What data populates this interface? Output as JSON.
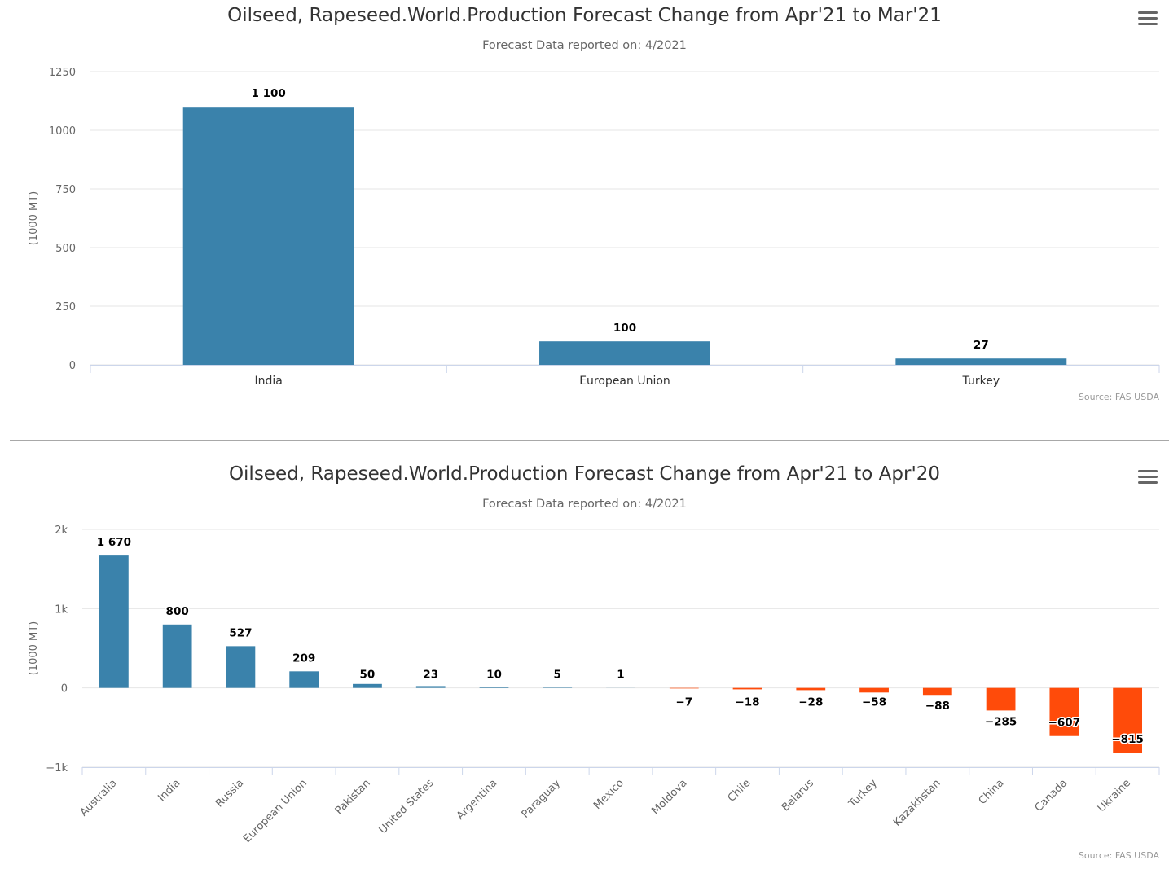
{
  "charts": [
    {
      "title": "Oilseed, Rapeseed.World.Production Forecast Change from Apr'21 to Mar'21",
      "subtitle": "Forecast Data reported on: 4/2021",
      "credits": "Source: FAS USDA",
      "menu_icon": "hamburger-menu-icon"
    },
    {
      "title": "Oilseed, Rapeseed.World.Production Forecast Change from Apr'21 to Apr'20",
      "subtitle": "Forecast Data reported on: 4/2021",
      "credits": "Source: FAS USDA",
      "menu_icon": "hamburger-menu-icon"
    }
  ],
  "chart_data": [
    {
      "type": "bar",
      "title": "Oilseed, Rapeseed.World.Production Forecast Change from Apr'21 to Mar'21",
      "subtitle": "Forecast Data reported on: 4/2021",
      "ylabel": "(1000 MT)",
      "xlabel": "",
      "categories": [
        "India",
        "European Union",
        "Turkey"
      ],
      "values": [
        1100,
        100,
        27
      ],
      "data_labels": [
        "1 100",
        "100",
        "27"
      ],
      "ylim": [
        0,
        1250
      ],
      "yticks": [
        0,
        250,
        500,
        750,
        1000,
        1250
      ],
      "ytick_labels": [
        "0",
        "250",
        "500",
        "750",
        "1000",
        "1250"
      ],
      "grid": true,
      "positive_color": "#3a82ab",
      "negative_color": "#ff4b0a"
    },
    {
      "type": "bar",
      "title": "Oilseed, Rapeseed.World.Production Forecast Change from Apr'21 to Apr'20",
      "subtitle": "Forecast Data reported on: 4/2021",
      "ylabel": "(1000 MT)",
      "xlabel": "",
      "categories": [
        "Australia",
        "India",
        "Russia",
        "European Union",
        "Pakistan",
        "United States",
        "Argentina",
        "Paraguay",
        "Mexico",
        "Moldova",
        "Chile",
        "Belarus",
        "Turkey",
        "Kazakhstan",
        "China",
        "Canada",
        "Ukraine"
      ],
      "values": [
        1670,
        800,
        527,
        209,
        50,
        23,
        10,
        5,
        1,
        -7,
        -18,
        -28,
        -58,
        -88,
        -285,
        -607,
        -815
      ],
      "data_labels": [
        "1 670",
        "800",
        "527",
        "209",
        "50",
        "23",
        "10",
        "5",
        "1",
        "−7",
        "−18",
        "−28",
        "−58",
        "−88",
        "−285",
        "−607",
        "−815"
      ],
      "ylim": [
        -1000,
        2000
      ],
      "yticks": [
        -1000,
        0,
        1000,
        2000
      ],
      "ytick_labels": [
        "−1k",
        "0",
        "1k",
        "2k"
      ],
      "grid": true,
      "positive_color": "#3a82ab",
      "negative_color": "#ff4b0a"
    }
  ]
}
